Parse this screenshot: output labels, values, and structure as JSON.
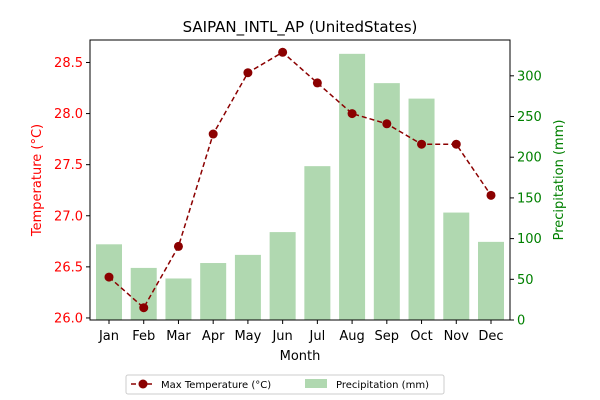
{
  "colors": {
    "temperature": "#8b0000",
    "temp_axis": "#ff0000",
    "precip_bar": "#b0d8b0",
    "precip_axis": "#008000",
    "axis": "#000000"
  },
  "chart_data": {
    "type": "bar+line",
    "title": "SAIPAN_INTL_AP (UnitedStates)",
    "xlabel": "Month",
    "ylabel_left": "Temperature (°C)",
    "ylabel_right": "Precipitation (mm)",
    "categories": [
      "Jan",
      "Feb",
      "Mar",
      "Apr",
      "May",
      "Jun",
      "Jul",
      "Aug",
      "Sep",
      "Oct",
      "Nov",
      "Dec"
    ],
    "ylim_left": [
      25.98,
      28.72
    ],
    "ylim_right": [
      0,
      344
    ],
    "yticks_left": [
      "26.0",
      "26.5",
      "27.0",
      "27.5",
      "28.0",
      "28.5"
    ],
    "yticks_right": [
      "0",
      "50",
      "100",
      "150",
      "200",
      "250",
      "300"
    ],
    "grid": false,
    "legend_position": "bottom-center",
    "series": [
      {
        "name": "Max Temperature (°C)",
        "type": "line",
        "axis": "left",
        "style": "dashed",
        "marker": "circle",
        "values": [
          26.4,
          26.1,
          26.7,
          27.8,
          28.4,
          28.6,
          28.3,
          28.0,
          27.9,
          27.7,
          27.7,
          27.2
        ]
      },
      {
        "name": "Precipitation (mm)",
        "type": "bar",
        "axis": "right",
        "values": [
          93,
          64,
          51,
          70,
          80,
          108,
          189,
          327,
          291,
          272,
          132,
          96
        ]
      }
    ]
  }
}
